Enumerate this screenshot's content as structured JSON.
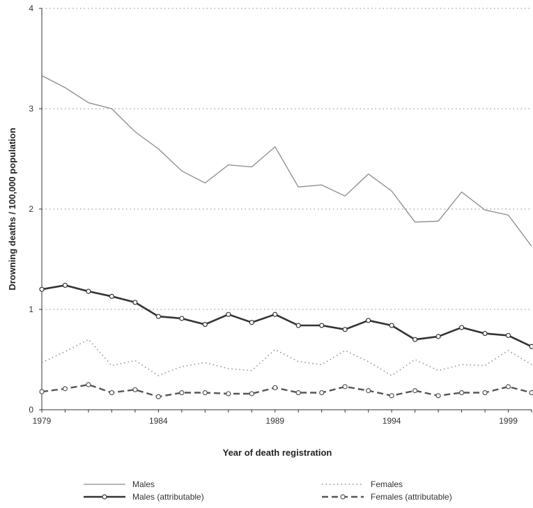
{
  "chart_data": {
    "type": "line",
    "title": "",
    "xlabel": "Year of death registration",
    "ylabel": "Drowning deaths / 100,000 population",
    "x": [
      1979,
      1980,
      1981,
      1982,
      1983,
      1984,
      1985,
      1986,
      1987,
      1988,
      1989,
      1990,
      1991,
      1992,
      1993,
      1994,
      1995,
      1996,
      1997,
      1998,
      1999,
      2000
    ],
    "x_ticks": [
      "1979",
      "1984",
      "1989",
      "1994",
      "1999"
    ],
    "y_ticks": [
      "0",
      "1",
      "2",
      "3",
      "4"
    ],
    "xlim": [
      1979,
      2000
    ],
    "ylim": [
      0,
      4
    ],
    "grid": "horizontal dotted",
    "legend_position": "bottom",
    "series": [
      {
        "name": "Males",
        "style": "solid-thin",
        "color": "#8a8a8a",
        "values": [
          3.33,
          3.21,
          3.06,
          3.0,
          2.77,
          2.6,
          2.38,
          2.26,
          2.44,
          2.42,
          2.62,
          2.22,
          2.24,
          2.13,
          2.35,
          2.18,
          1.87,
          1.88,
          2.17,
          1.99,
          1.94,
          1.63
        ]
      },
      {
        "name": "Females",
        "style": "dotted",
        "color": "#8a8a8a",
        "values": [
          0.47,
          0.58,
          0.7,
          0.44,
          0.49,
          0.34,
          0.43,
          0.47,
          0.41,
          0.39,
          0.6,
          0.48,
          0.45,
          0.59,
          0.48,
          0.34,
          0.5,
          0.39,
          0.45,
          0.44,
          0.59,
          0.45
        ]
      },
      {
        "name": "Males (attributable)",
        "style": "solid-thick-markers",
        "color": "#333333",
        "values": [
          1.2,
          1.24,
          1.18,
          1.13,
          1.07,
          0.93,
          0.91,
          0.85,
          0.95,
          0.87,
          0.95,
          0.84,
          0.84,
          0.8,
          0.89,
          0.84,
          0.7,
          0.73,
          0.82,
          0.76,
          0.74,
          0.63
        ]
      },
      {
        "name": "Females (attributable)",
        "style": "dashed-markers",
        "color": "#555555",
        "values": [
          0.18,
          0.21,
          0.25,
          0.17,
          0.2,
          0.13,
          0.17,
          0.17,
          0.16,
          0.16,
          0.22,
          0.17,
          0.17,
          0.23,
          0.19,
          0.14,
          0.19,
          0.14,
          0.17,
          0.17,
          0.23,
          0.17
        ]
      }
    ]
  }
}
